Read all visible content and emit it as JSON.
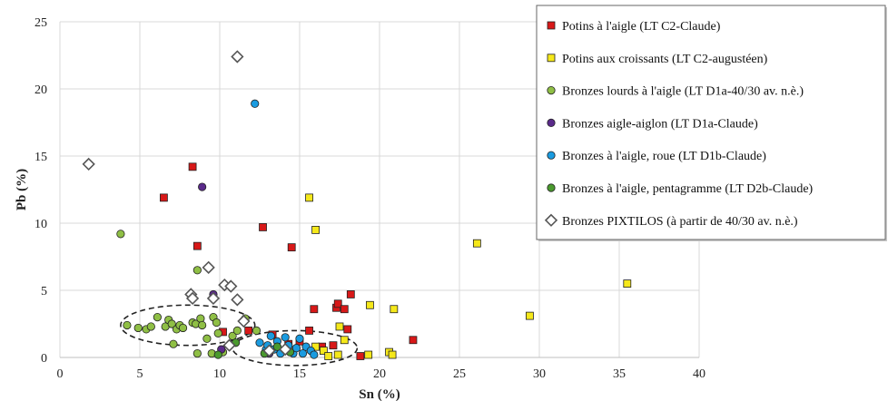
{
  "chart_data": {
    "type": "scatter",
    "xlabel": "Sn (%)",
    "ylabel": "Pb (%)",
    "xlim": [
      0,
      40
    ],
    "ylim": [
      0,
      25
    ],
    "xticks": [
      "0",
      "5",
      "10",
      "15",
      "20",
      "25",
      "30",
      "35",
      "40"
    ],
    "yticks": [
      "0",
      "5",
      "10",
      "15",
      "20",
      "25"
    ],
    "grid": true,
    "legend_position": "top-right",
    "series": [
      {
        "name": "Potins à l'aigle (LT C2-Claude)",
        "marker": "square",
        "color": "#d81818",
        "points": [
          [
            6.5,
            11.9
          ],
          [
            8.3,
            14.2
          ],
          [
            8.6,
            8.3
          ],
          [
            12.7,
            9.7
          ],
          [
            14.5,
            8.2
          ],
          [
            10.2,
            1.9
          ],
          [
            11.8,
            2.0
          ],
          [
            13.3,
            1.7
          ],
          [
            14.3,
            1.0
          ],
          [
            15.0,
            1.2
          ],
          [
            15.6,
            2.0
          ],
          [
            15.9,
            3.6
          ],
          [
            16.4,
            0.8
          ],
          [
            17.1,
            0.9
          ],
          [
            17.3,
            3.7
          ],
          [
            17.4,
            4.0
          ],
          [
            17.8,
            3.6
          ],
          [
            18.0,
            2.1
          ],
          [
            18.2,
            4.7
          ],
          [
            18.8,
            0.1
          ],
          [
            22.1,
            1.3
          ]
        ]
      },
      {
        "name": "Potins aux croissants (LT C2-augustéen)",
        "marker": "square",
        "color": "#f5e81a",
        "points": [
          [
            15.6,
            11.9
          ],
          [
            16.0,
            9.5
          ],
          [
            19.4,
            3.9
          ],
          [
            20.9,
            3.6
          ],
          [
            26.1,
            8.5
          ],
          [
            29.4,
            3.1
          ],
          [
            35.5,
            5.5
          ],
          [
            16.5,
            0.5
          ],
          [
            16.8,
            0.1
          ],
          [
            17.4,
            0.2
          ],
          [
            17.5,
            2.3
          ],
          [
            17.8,
            1.3
          ],
          [
            19.3,
            0.2
          ],
          [
            20.6,
            0.4
          ],
          [
            20.8,
            0.2
          ],
          [
            16.0,
            0.8
          ]
        ]
      },
      {
        "name": "Bronzes lourds à l'aigle (LT D1a-40/30 av. n.è.)",
        "marker": "circle",
        "color": "#8fbf45",
        "points": [
          [
            3.8,
            9.2
          ],
          [
            4.2,
            2.4
          ],
          [
            4.9,
            2.2
          ],
          [
            5.4,
            2.1
          ],
          [
            5.7,
            2.3
          ],
          [
            6.1,
            3.0
          ],
          [
            6.6,
            2.3
          ],
          [
            6.8,
            2.8
          ],
          [
            7.0,
            2.5
          ],
          [
            7.1,
            1.0
          ],
          [
            7.3,
            2.1
          ],
          [
            7.5,
            2.4
          ],
          [
            7.7,
            2.2
          ],
          [
            8.3,
            2.6
          ],
          [
            8.5,
            2.5
          ],
          [
            8.6,
            6.5
          ],
          [
            8.8,
            2.9
          ],
          [
            8.9,
            2.4
          ],
          [
            9.2,
            1.4
          ],
          [
            9.5,
            0.3
          ],
          [
            9.6,
            3.0
          ],
          [
            9.8,
            2.6
          ],
          [
            9.9,
            1.8
          ],
          [
            10.2,
            0.4
          ],
          [
            10.8,
            1.6
          ],
          [
            11.1,
            2.0
          ],
          [
            11.6,
            2.9
          ],
          [
            12.3,
            2.0
          ],
          [
            8.6,
            0.3
          ]
        ]
      },
      {
        "name": "Bronzes aigle-aiglon (LT D1a-Claude)",
        "marker": "circle",
        "color": "#5a2a8a",
        "points": [
          [
            8.9,
            12.7
          ],
          [
            9.6,
            4.7
          ],
          [
            10.1,
            0.6
          ],
          [
            13.1,
            0.3
          ]
        ]
      },
      {
        "name": "Bronzes à l'aigle, roue (LT D1b-Claude)",
        "marker": "circle",
        "color": "#1a9be0",
        "points": [
          [
            12.2,
            18.9
          ],
          [
            12.5,
            1.1
          ],
          [
            12.9,
            0.6
          ],
          [
            13.2,
            1.6
          ],
          [
            13.4,
            0.6
          ],
          [
            13.6,
            1.2
          ],
          [
            14.0,
            0.5
          ],
          [
            14.1,
            1.5
          ],
          [
            14.6,
            0.3
          ],
          [
            14.8,
            0.7
          ],
          [
            15.0,
            1.4
          ],
          [
            15.2,
            0.3
          ],
          [
            15.4,
            0.8
          ],
          [
            15.7,
            0.5
          ],
          [
            15.9,
            0.2
          ],
          [
            14.3,
            0.9
          ],
          [
            13.0,
            0.9
          ],
          [
            13.8,
            0.3
          ]
        ]
      },
      {
        "name": "Bronzes à l'aigle, pentagramme (LT D2b-Claude)",
        "marker": "circle",
        "color": "#4a9a2e",
        "points": [
          [
            9.9,
            0.2
          ],
          [
            11.0,
            1.1
          ],
          [
            12.8,
            0.3
          ],
          [
            14.4,
            0.4
          ],
          [
            13.6,
            0.8
          ]
        ]
      },
      {
        "name": "Bronzes PIXTILOS (à partir de 40/30 av. n.è.)",
        "marker": "diamond",
        "color": "#ffffff",
        "points": [
          [
            1.8,
            14.4
          ],
          [
            11.1,
            22.4
          ],
          [
            8.2,
            4.7
          ],
          [
            9.3,
            6.7
          ],
          [
            10.3,
            5.4
          ],
          [
            10.7,
            5.3
          ],
          [
            11.1,
            4.3
          ],
          [
            8.3,
            4.4
          ],
          [
            9.6,
            4.4
          ],
          [
            10.6,
            0.9
          ],
          [
            13.1,
            0.5
          ],
          [
            14.1,
            0.6
          ],
          [
            11.5,
            2.7
          ]
        ]
      }
    ],
    "annotations": [
      {
        "type": "dashed-ellipse",
        "center": [
          8,
          2.4
        ],
        "rx": 4.2,
        "ry": 1.5
      },
      {
        "type": "dashed-ellipse",
        "center": [
          14.7,
          0.7
        ],
        "rx": 3.9,
        "ry": 1.3
      }
    ]
  }
}
